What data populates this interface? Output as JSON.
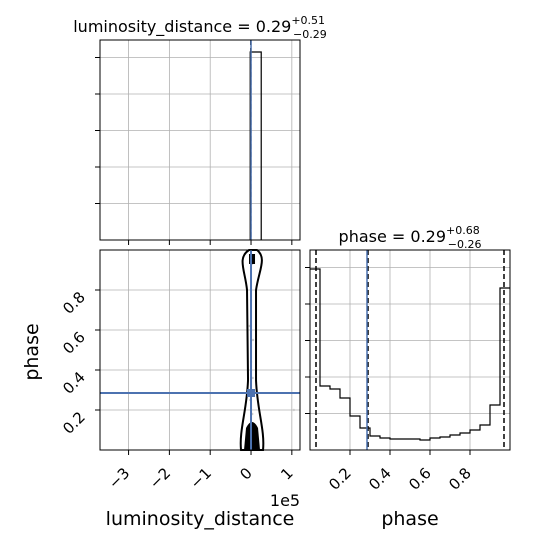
{
  "chart_data": [
    {
      "type": "histogram",
      "panel": "luminosity_distance marginal",
      "title": "luminosity_distance",
      "title_value": "0.29",
      "title_plus": "+0.51",
      "title_minus": "−0.29",
      "xlim": [
        -3.7,
        1.2
      ],
      "x_axis_multiplier": "1e5",
      "grid": true,
      "bins": [
        {
          "x0": -0.02,
          "x1": 0.25,
          "height": 0.94
        }
      ],
      "vlines": [
        {
          "x": -0.005,
          "style": "dashed",
          "color": "#000000"
        },
        {
          "x": 0.0,
          "style": "solid",
          "color": "#4c72b0"
        }
      ]
    },
    {
      "type": "histogram",
      "panel": "phase marginal",
      "title": "phase",
      "title_value": "0.29",
      "title_plus": "+0.68",
      "title_minus": "−0.26",
      "xlim": [
        0.0,
        1.0
      ],
      "xticks": [
        "0.2",
        "0.4",
        "0.6",
        "0.8"
      ],
      "xlabel": "phase",
      "grid": true,
      "step_x": [
        0.0,
        0.05,
        0.1,
        0.15,
        0.2,
        0.25,
        0.3,
        0.35,
        0.4,
        0.45,
        0.5,
        0.55,
        0.6,
        0.65,
        0.7,
        0.75,
        0.8,
        0.85,
        0.9,
        0.95,
        1.0
      ],
      "step_y": [
        0.905,
        0.32,
        0.305,
        0.26,
        0.17,
        0.11,
        0.07,
        0.06,
        0.055,
        0.055,
        0.055,
        0.05,
        0.06,
        0.065,
        0.075,
        0.085,
        0.1,
        0.125,
        0.225,
        0.81
      ],
      "vlines": [
        {
          "x": 0.03,
          "style": "dashed",
          "color": "#000000"
        },
        {
          "x": 0.29,
          "style": "dashed",
          "color": "#000000"
        },
        {
          "x": 0.285,
          "style": "solid",
          "color": "#4c72b0"
        },
        {
          "x": 0.97,
          "style": "dashed",
          "color": "#000000"
        }
      ]
    },
    {
      "type": "scatter-contour",
      "panel": "phase vs luminosity_distance",
      "xlim": [
        -3.7,
        1.2
      ],
      "ylim": [
        0.0,
        1.0
      ],
      "xticks": [
        "−3",
        "−2",
        "−1",
        "0",
        "1"
      ],
      "yticks": [
        "0.2",
        "0.4",
        "0.6",
        "0.8"
      ],
      "xlabel": "luminosity_distance",
      "ylabel": "phase",
      "x_multiplier_label": "1e5",
      "grid": true,
      "truth": {
        "x": 0.0,
        "y": 0.285,
        "color": "#4c72b0"
      }
    }
  ]
}
